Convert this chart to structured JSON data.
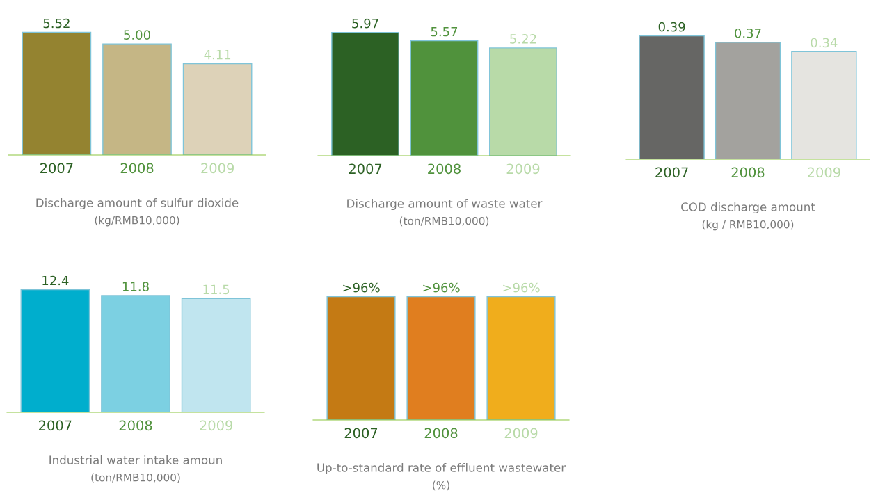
{
  "chart_data": [
    {
      "type": "bar",
      "title": "Discharge amount of sulfur dioxide",
      "subtitle": "(kg/RMB10,000)",
      "categories": [
        "2007",
        "2008",
        "2009"
      ],
      "values": [
        5.52,
        5.0,
        4.11
      ],
      "value_labels": [
        "5.52",
        "5.00",
        "4.11"
      ],
      "colors": [
        "#948330",
        "#c5b685",
        "#ddd2b8"
      ]
    },
    {
      "type": "bar",
      "title": "Discharge amount of waste water",
      "subtitle": "(ton/RMB10,000)",
      "categories": [
        "2007",
        "2008",
        "2009"
      ],
      "values": [
        5.97,
        5.57,
        5.22
      ],
      "value_labels": [
        "5.97",
        "5.57",
        "5.22"
      ],
      "colors": [
        "#2c6124",
        "#50923c",
        "#b8daa8"
      ]
    },
    {
      "type": "bar",
      "title": "COD discharge amount",
      "subtitle": "(kg / RMB10,000)",
      "categories": [
        "2007",
        "2008",
        "2009"
      ],
      "values": [
        0.39,
        0.37,
        0.34
      ],
      "value_labels": [
        "0.39",
        "0.37",
        "0.34"
      ],
      "colors": [
        "#666664",
        "#a3a29e",
        "#e5e4e0"
      ]
    },
    {
      "type": "bar",
      "title": "Industrial water intake amoun",
      "subtitle": "(ton/RMB10,000)",
      "categories": [
        "2007",
        "2008",
        "2009"
      ],
      "values": [
        12.4,
        11.8,
        11.5
      ],
      "value_labels": [
        "12.4",
        "11.8",
        "11.5"
      ],
      "colors": [
        "#00aecd",
        "#7cd0e2",
        "#c0e5ef"
      ]
    },
    {
      "type": "bar",
      "title": "Up-to-standard rate of effluent wastewater",
      "subtitle": "(%)",
      "categories": [
        "2007",
        "2008",
        "2009"
      ],
      "values": [
        96,
        96,
        96
      ],
      "value_labels": [
        ">96%",
        ">96%",
        ">96%"
      ],
      "colors": [
        "#c47a14",
        "#e07e1f",
        "#f0ad1c"
      ]
    }
  ]
}
